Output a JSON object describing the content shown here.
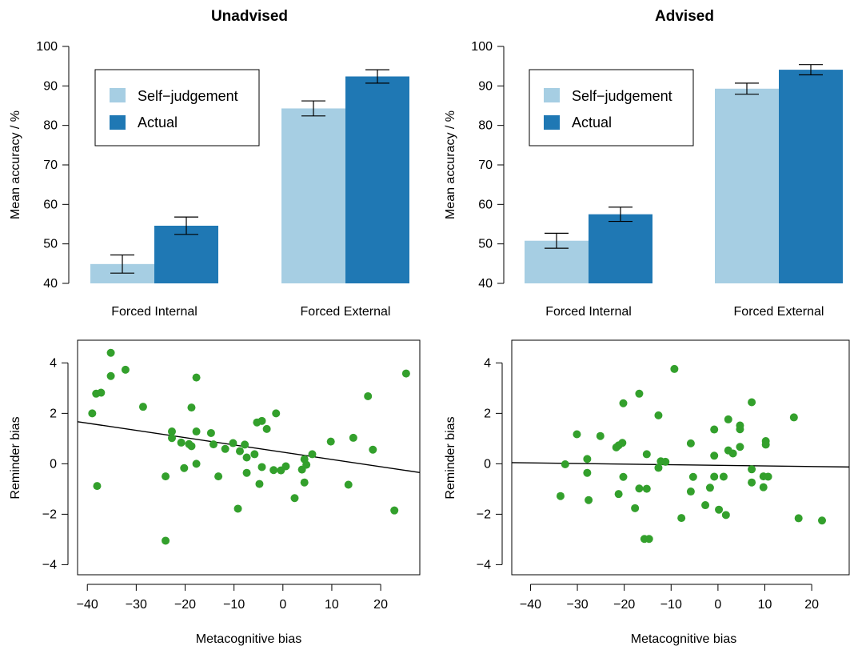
{
  "colors": {
    "self_judgement": "#a6cee3",
    "actual": "#1f78b4",
    "points": "#33a02c",
    "line": "#000000"
  },
  "chart_data": [
    {
      "type": "bar",
      "title": "Unadvised",
      "ylabel": "Mean accuracy / %",
      "xlabel": "",
      "ylim": [
        40,
        100
      ],
      "yticks": [
        "40",
        "50",
        "60",
        "70",
        "80",
        "90",
        "100"
      ],
      "categories": [
        "Forced Internal",
        "Forced External"
      ],
      "legend": {
        "position": "top-left"
      },
      "series": [
        {
          "name": "Self−judgement",
          "values": [
            44.9,
            84.3
          ],
          "errors": [
            2.3,
            1.9
          ]
        },
        {
          "name": "Actual",
          "values": [
            54.6,
            92.4
          ],
          "errors": [
            2.2,
            1.7
          ]
        }
      ]
    },
    {
      "type": "bar",
      "title": "Advised",
      "ylabel": "Mean accuracy / %",
      "xlabel": "",
      "ylim": [
        40,
        100
      ],
      "yticks": [
        "40",
        "50",
        "60",
        "70",
        "80",
        "90",
        "100"
      ],
      "categories": [
        "Forced Internal",
        "Forced External"
      ],
      "legend": {
        "position": "top-left"
      },
      "series": [
        {
          "name": "Self−judgement",
          "values": [
            50.8,
            89.3
          ],
          "errors": [
            1.9,
            1.4
          ]
        },
        {
          "name": "Actual",
          "values": [
            57.5,
            94.1
          ],
          "errors": [
            1.8,
            1.3
          ]
        }
      ]
    },
    {
      "type": "scatter",
      "title": "",
      "xlabel": "Metacognitive bias",
      "ylabel": "Reminder bias",
      "xlim": [
        -42,
        28
      ],
      "ylim": [
        -4.4,
        4.9
      ],
      "xticks": [
        "−40",
        "−30",
        "−20",
        "−10",
        "0",
        "10",
        "20"
      ],
      "yticks": [
        "−4",
        "−2",
        "0",
        "2",
        "4"
      ],
      "regression": {
        "intercept": 0.46,
        "slope": -0.0288
      },
      "points": [
        [
          -39,
          2.0
        ],
        [
          -38.2,
          2.78
        ],
        [
          -37.2,
          2.82
        ],
        [
          -35.2,
          4.4
        ],
        [
          -35.2,
          3.48
        ],
        [
          -38,
          -0.88
        ],
        [
          -32.2,
          3.73
        ],
        [
          -28.6,
          2.26
        ],
        [
          -24,
          -3.05
        ],
        [
          -24,
          -0.5
        ],
        [
          -22.7,
          1.28
        ],
        [
          -22.7,
          1.02
        ],
        [
          -20.8,
          0.84
        ],
        [
          -20.2,
          -0.17
        ],
        [
          -19.2,
          0.78
        ],
        [
          -18.7,
          0.7
        ],
        [
          -18.7,
          2.23
        ],
        [
          -17.7,
          3.42
        ],
        [
          -17.7,
          1.28
        ],
        [
          -17.7,
          0.0
        ],
        [
          -14.7,
          1.22
        ],
        [
          -14.2,
          0.77
        ],
        [
          -13.2,
          -0.5
        ],
        [
          -11.8,
          0.59
        ],
        [
          -10.2,
          0.82
        ],
        [
          -9.2,
          -1.78
        ],
        [
          -8.8,
          0.5
        ],
        [
          -7.8,
          0.76
        ],
        [
          -7.4,
          0.25
        ],
        [
          -7.4,
          -0.36
        ],
        [
          -5.8,
          0.38
        ],
        [
          -5.3,
          1.64
        ],
        [
          -4.8,
          -0.8
        ],
        [
          -4.3,
          1.7
        ],
        [
          -4.3,
          -0.13
        ],
        [
          -3.3,
          1.38
        ],
        [
          -1.9,
          -0.25
        ],
        [
          -1.4,
          2.0
        ],
        [
          -0.4,
          -0.26
        ],
        [
          0.6,
          -0.1
        ],
        [
          2.4,
          -1.36
        ],
        [
          3.9,
          -0.23
        ],
        [
          4.4,
          -0.74
        ],
        [
          4.4,
          0.18
        ],
        [
          4.8,
          -0.04
        ],
        [
          6.0,
          0.38
        ],
        [
          9.8,
          0.88
        ],
        [
          13.4,
          -0.83
        ],
        [
          14.4,
          1.03
        ],
        [
          17.4,
          2.68
        ],
        [
          18.4,
          0.56
        ],
        [
          22.8,
          -1.85
        ],
        [
          25.2,
          3.58
        ]
      ]
    },
    {
      "type": "scatter",
      "title": "",
      "xlabel": "Metacognitive bias",
      "ylabel": "Reminder bias",
      "xlim": [
        -44,
        28
      ],
      "ylim": [
        -4.4,
        4.9
      ],
      "xticks": [
        "−40",
        "−30",
        "−20",
        "−10",
        "0",
        "10",
        "20"
      ],
      "yticks": [
        "−4",
        "−2",
        "0",
        "2",
        "4"
      ],
      "regression": {
        "intercept": -0.06,
        "slope": -0.0024
      },
      "points": [
        [
          -33.6,
          -1.28
        ],
        [
          -32.6,
          -0.02
        ],
        [
          -30.1,
          1.17
        ],
        [
          -27.9,
          0.19
        ],
        [
          -27.9,
          -0.36
        ],
        [
          -27.6,
          -1.44
        ],
        [
          -25.1,
          1.1
        ],
        [
          -21.7,
          0.65
        ],
        [
          -21.2,
          0.73
        ],
        [
          -21.2,
          -1.2
        ],
        [
          -20.4,
          0.83
        ],
        [
          -20.2,
          2.4
        ],
        [
          -20.2,
          -0.52
        ],
        [
          -17.7,
          -1.76
        ],
        [
          -16.8,
          2.78
        ],
        [
          -16.8,
          -0.98
        ],
        [
          -15.7,
          -2.98
        ],
        [
          -15.2,
          0.38
        ],
        [
          -15.2,
          -0.99
        ],
        [
          -14.7,
          -2.98
        ],
        [
          -12.7,
          1.92
        ],
        [
          -12.7,
          -0.16
        ],
        [
          -12.2,
          0.1
        ],
        [
          -11.2,
          0.08
        ],
        [
          -9.3,
          3.76
        ],
        [
          -7.8,
          -2.15
        ],
        [
          -5.8,
          0.81
        ],
        [
          -5.8,
          -1.1
        ],
        [
          -5.3,
          -0.52
        ],
        [
          -2.7,
          -1.64
        ],
        [
          -1.7,
          -0.95
        ],
        [
          -0.8,
          1.36
        ],
        [
          -0.8,
          0.32
        ],
        [
          -0.8,
          -0.51
        ],
        [
          0.2,
          -1.82
        ],
        [
          1.2,
          -0.51
        ],
        [
          1.7,
          -2.03
        ],
        [
          2.2,
          1.76
        ],
        [
          2.2,
          0.53
        ],
        [
          3.2,
          0.41
        ],
        [
          4.7,
          1.52
        ],
        [
          4.7,
          1.37
        ],
        [
          4.7,
          0.67
        ],
        [
          7.2,
          2.44
        ],
        [
          7.2,
          -0.22
        ],
        [
          7.2,
          -0.74
        ],
        [
          9.7,
          -0.5
        ],
        [
          9.7,
          -0.93
        ],
        [
          10.2,
          0.9
        ],
        [
          10.2,
          0.76
        ],
        [
          10.7,
          -0.51
        ],
        [
          16.2,
          1.84
        ],
        [
          17.2,
          -2.16
        ],
        [
          22.2,
          -2.25
        ]
      ]
    }
  ]
}
